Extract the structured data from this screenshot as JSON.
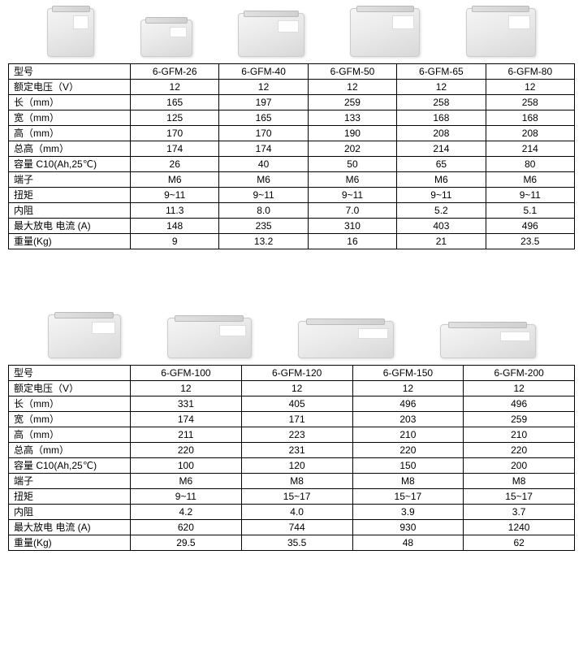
{
  "labels": {
    "model": "型号",
    "voltage": "额定电压（V）",
    "length": "长（mm）",
    "width": "宽（mm）",
    "height": "高（mm）",
    "total_height": "总高（mm）",
    "capacity": "容量 C10(Ah,25℃)",
    "terminal": "端子",
    "torque": "扭矩",
    "resistance": "内阻",
    "max_discharge": "最大放电 电流 (A)",
    "weight": "重量(Kg)"
  },
  "table1": {
    "columns": [
      "6-GFM-26",
      "6-GFM-40",
      "6-GFM-50",
      "6-GFM-65",
      "6-GFM-80"
    ],
    "rows": {
      "voltage": [
        "12",
        "12",
        "12",
        "12",
        "12"
      ],
      "length": [
        "165",
        "197",
        "259",
        "258",
        "258"
      ],
      "width": [
        "125",
        "165",
        "133",
        "168",
        "168"
      ],
      "height": [
        "170",
        "170",
        "190",
        "208",
        "208"
      ],
      "total_height": [
        "174",
        "174",
        "202",
        "214",
        "214"
      ],
      "capacity": [
        "26",
        "40",
        "50",
        "65",
        "80"
      ],
      "terminal": [
        "M6",
        "M6",
        "M6",
        "M6",
        "M6"
      ],
      "torque": [
        "9~11",
        "9~11",
        "9~11",
        "9~11",
        "9~11"
      ],
      "resistance": [
        "11.3",
        "8.0",
        "7.0",
        "5.2",
        "5.1"
      ],
      "max_discharge": [
        "148",
        "235",
        "310",
        "403",
        "496"
      ],
      "weight": [
        "9",
        "13.2",
        "16",
        "21",
        "23.5"
      ]
    }
  },
  "table2": {
    "columns": [
      "6-GFM-100",
      "6-GFM-120",
      "6-GFM-150",
      "6-GFM-200"
    ],
    "rows": {
      "voltage": [
        "12",
        "12",
        "12",
        "12"
      ],
      "length": [
        "331",
        "405",
        "496",
        "496"
      ],
      "width": [
        "174",
        "171",
        "203",
        "259"
      ],
      "height": [
        "211",
        "223",
        "210",
        "210"
      ],
      "total_height": [
        "220",
        "231",
        "220",
        "220"
      ],
      "capacity": [
        "100",
        "120",
        "150",
        "200"
      ],
      "terminal": [
        "M6",
        "M8",
        "M8",
        "M8"
      ],
      "torque": [
        "9~11",
        "15~17",
        "15~17",
        "15~17"
      ],
      "resistance": [
        "4.2",
        "4.0",
        "3.9",
        "3.7"
      ],
      "max_discharge": [
        "620",
        "744",
        "930",
        "1240"
      ],
      "weight": [
        "29.5",
        "35.5",
        "48",
        "62"
      ]
    }
  },
  "row_order": [
    "voltage",
    "length",
    "width",
    "height",
    "total_height",
    "capacity",
    "terminal",
    "torque",
    "resistance",
    "max_discharge",
    "weight"
  ]
}
